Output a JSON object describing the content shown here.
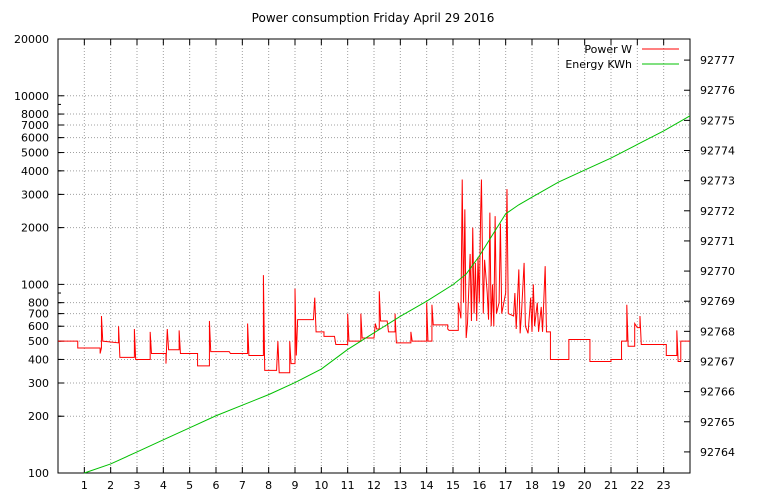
{
  "chart_data": {
    "type": "line",
    "title": "Power consumption Friday April 29 2016",
    "legend_position": "top-right",
    "grid": true,
    "x": {
      "range": [
        0,
        24
      ],
      "ticks": [
        1,
        2,
        3,
        4,
        5,
        6,
        7,
        8,
        9,
        10,
        11,
        12,
        13,
        14,
        15,
        16,
        17,
        18,
        19,
        20,
        21,
        22,
        23
      ],
      "tick_labels": [
        "1",
        "2",
        "3",
        "4",
        "5",
        "6",
        "7",
        "8",
        "9",
        "10",
        "11",
        "12",
        "13",
        "14",
        "15",
        "16",
        "17",
        "18",
        "19",
        "20",
        "21",
        "22",
        "23"
      ]
    },
    "y_left": {
      "scale": "log",
      "range": [
        100,
        20000
      ],
      "ticks": [
        100,
        200,
        300,
        400,
        500,
        600,
        700,
        800,
        1000,
        2000,
        3000,
        4000,
        5000,
        6000,
        7000,
        8000,
        10000,
        20000
      ],
      "tick_labels": [
        "100",
        "200",
        "300",
        "400",
        "500",
        "600",
        "700",
        "800",
        "1000",
        "2000",
        "3000",
        "4000",
        "5000",
        "6000",
        "7000",
        "8000",
        "10000",
        "20000"
      ]
    },
    "y_right": {
      "scale": "linear",
      "range": [
        92763.3,
        92777.7
      ],
      "ticks": [
        92764,
        92765,
        92766,
        92767,
        92768,
        92769,
        92770,
        92771,
        92772,
        92773,
        92774,
        92775,
        92776,
        92777
      ],
      "tick_labels": [
        "92764",
        "92765",
        "92766",
        "92767",
        "92768",
        "92769",
        "92770",
        "92771",
        "92772",
        "92773",
        "92774",
        "92775",
        "92776",
        "92777"
      ]
    },
    "series": [
      {
        "name": "Power W",
        "axis": "left",
        "color": "#ff0000",
        "points": [
          [
            0.0,
            500
          ],
          [
            0.75,
            500
          ],
          [
            0.75,
            460
          ],
          [
            1.6,
            460
          ],
          [
            1.6,
            430
          ],
          [
            1.65,
            460
          ],
          [
            1.65,
            680
          ],
          [
            1.7,
            500
          ],
          [
            2.3,
            490
          ],
          [
            2.3,
            600
          ],
          [
            2.35,
            410
          ],
          [
            2.9,
            410
          ],
          [
            2.9,
            580
          ],
          [
            2.95,
            400
          ],
          [
            3.5,
            400
          ],
          [
            3.5,
            560
          ],
          [
            3.55,
            430
          ],
          [
            4.1,
            430
          ],
          [
            4.1,
            380
          ],
          [
            4.15,
            580
          ],
          [
            4.2,
            450
          ],
          [
            4.6,
            450
          ],
          [
            4.6,
            570
          ],
          [
            4.65,
            430
          ],
          [
            5.3,
            430
          ],
          [
            5.3,
            370
          ],
          [
            5.75,
            370
          ],
          [
            5.75,
            640
          ],
          [
            5.8,
            440
          ],
          [
            6.5,
            440
          ],
          [
            6.55,
            430
          ],
          [
            7.2,
            430
          ],
          [
            7.2,
            620
          ],
          [
            7.25,
            420
          ],
          [
            7.8,
            420
          ],
          [
            7.8,
            1120
          ],
          [
            7.85,
            350
          ],
          [
            8.3,
            350
          ],
          [
            8.35,
            500
          ],
          [
            8.4,
            340
          ],
          [
            8.8,
            340
          ],
          [
            8.8,
            500
          ],
          [
            8.85,
            380
          ],
          [
            9.0,
            380
          ],
          [
            9.0,
            950
          ],
          [
            9.05,
            420
          ],
          [
            9.1,
            650
          ],
          [
            9.7,
            650
          ],
          [
            9.75,
            850
          ],
          [
            9.8,
            560
          ],
          [
            10.1,
            560
          ],
          [
            10.1,
            530
          ],
          [
            10.5,
            530
          ],
          [
            10.55,
            480
          ],
          [
            11.0,
            480
          ],
          [
            11.0,
            700
          ],
          [
            11.05,
            500
          ],
          [
            11.5,
            500
          ],
          [
            11.5,
            700
          ],
          [
            11.55,
            520
          ],
          [
            12.0,
            520
          ],
          [
            12.05,
            620
          ],
          [
            12.1,
            580
          ],
          [
            12.2,
            580
          ],
          [
            12.2,
            920
          ],
          [
            12.25,
            640
          ],
          [
            12.5,
            640
          ],
          [
            12.55,
            560
          ],
          [
            12.8,
            560
          ],
          [
            12.8,
            700
          ],
          [
            12.85,
            490
          ],
          [
            13.4,
            490
          ],
          [
            13.4,
            560
          ],
          [
            13.45,
            500
          ],
          [
            14.0,
            500
          ],
          [
            14.0,
            800
          ],
          [
            14.05,
            500
          ],
          [
            14.2,
            500
          ],
          [
            14.2,
            780
          ],
          [
            14.25,
            610
          ],
          [
            14.8,
            610
          ],
          [
            14.8,
            580
          ],
          [
            14.85,
            570
          ],
          [
            15.2,
            570
          ],
          [
            15.2,
            800
          ],
          [
            15.3,
            660
          ],
          [
            15.35,
            3600
          ],
          [
            15.4,
            800
          ],
          [
            15.45,
            2500
          ],
          [
            15.5,
            520
          ],
          [
            15.55,
            620
          ],
          [
            15.65,
            1450
          ],
          [
            15.7,
            640
          ],
          [
            15.75,
            2000
          ],
          [
            15.8,
            700
          ],
          [
            15.85,
            1300
          ],
          [
            15.9,
            640
          ],
          [
            15.95,
            1400
          ],
          [
            16.0,
            800
          ],
          [
            16.05,
            2400
          ],
          [
            16.08,
            3600
          ],
          [
            16.15,
            700
          ],
          [
            16.2,
            1350
          ],
          [
            16.3,
            900
          ],
          [
            16.35,
            650
          ],
          [
            16.4,
            2400
          ],
          [
            16.45,
            600
          ],
          [
            16.5,
            1000
          ],
          [
            16.55,
            600
          ],
          [
            16.6,
            2300
          ],
          [
            16.65,
            700
          ],
          [
            16.75,
            800
          ],
          [
            16.8,
            2100
          ],
          [
            16.85,
            700
          ],
          [
            17.0,
            900
          ],
          [
            17.05,
            3200
          ],
          [
            17.1,
            700
          ],
          [
            17.3,
            680
          ],
          [
            17.35,
            900
          ],
          [
            17.4,
            580
          ],
          [
            17.5,
            1200
          ],
          [
            17.55,
            550
          ],
          [
            17.6,
            700
          ],
          [
            17.7,
            1300
          ],
          [
            17.75,
            600
          ],
          [
            17.85,
            550
          ],
          [
            17.95,
            850
          ],
          [
            18.0,
            560
          ],
          [
            18.05,
            1000
          ],
          [
            18.1,
            600
          ],
          [
            18.2,
            800
          ],
          [
            18.25,
            560
          ],
          [
            18.35,
            760
          ],
          [
            18.4,
            560
          ],
          [
            18.5,
            1250
          ],
          [
            18.55,
            560
          ],
          [
            18.7,
            560
          ],
          [
            18.7,
            400
          ],
          [
            19.4,
            400
          ],
          [
            19.4,
            510
          ],
          [
            20.2,
            510
          ],
          [
            20.2,
            390
          ],
          [
            21.0,
            390
          ],
          [
            21.0,
            400
          ],
          [
            21.4,
            400
          ],
          [
            21.4,
            500
          ],
          [
            21.6,
            500
          ],
          [
            21.6,
            780
          ],
          [
            21.65,
            470
          ],
          [
            21.9,
            470
          ],
          [
            21.9,
            620
          ],
          [
            22.0,
            590
          ],
          [
            22.1,
            590
          ],
          [
            22.1,
            680
          ],
          [
            22.15,
            480
          ],
          [
            23.1,
            480
          ],
          [
            23.1,
            420
          ],
          [
            23.5,
            420
          ],
          [
            23.5,
            570
          ],
          [
            23.55,
            390
          ],
          [
            23.65,
            390
          ],
          [
            23.65,
            500
          ],
          [
            24.0,
            500
          ]
        ]
      },
      {
        "name": "Energy KWh",
        "axis": "right",
        "color": "#00c000",
        "points": [
          [
            1.0,
            92763.3
          ],
          [
            2.0,
            92763.6
          ],
          [
            3.0,
            92764.0
          ],
          [
            4.0,
            92764.4
          ],
          [
            5.0,
            92764.8
          ],
          [
            6.0,
            92765.2
          ],
          [
            7.0,
            92765.55
          ],
          [
            8.0,
            92765.9
          ],
          [
            9.0,
            92766.3
          ],
          [
            10.0,
            92766.75
          ],
          [
            11.0,
            92767.4
          ],
          [
            12.0,
            92767.95
          ],
          [
            13.0,
            92768.5
          ],
          [
            14.0,
            92769.0
          ],
          [
            15.0,
            92769.55
          ],
          [
            15.5,
            92769.9
          ],
          [
            16.0,
            92770.5
          ],
          [
            16.5,
            92771.2
          ],
          [
            17.0,
            92771.9
          ],
          [
            17.5,
            92772.2
          ],
          [
            18.0,
            92772.45
          ],
          [
            19.0,
            92772.95
          ],
          [
            20.0,
            92773.35
          ],
          [
            21.0,
            92773.75
          ],
          [
            22.0,
            92774.2
          ],
          [
            23.0,
            92774.65
          ],
          [
            24.0,
            92775.15
          ]
        ]
      }
    ]
  }
}
